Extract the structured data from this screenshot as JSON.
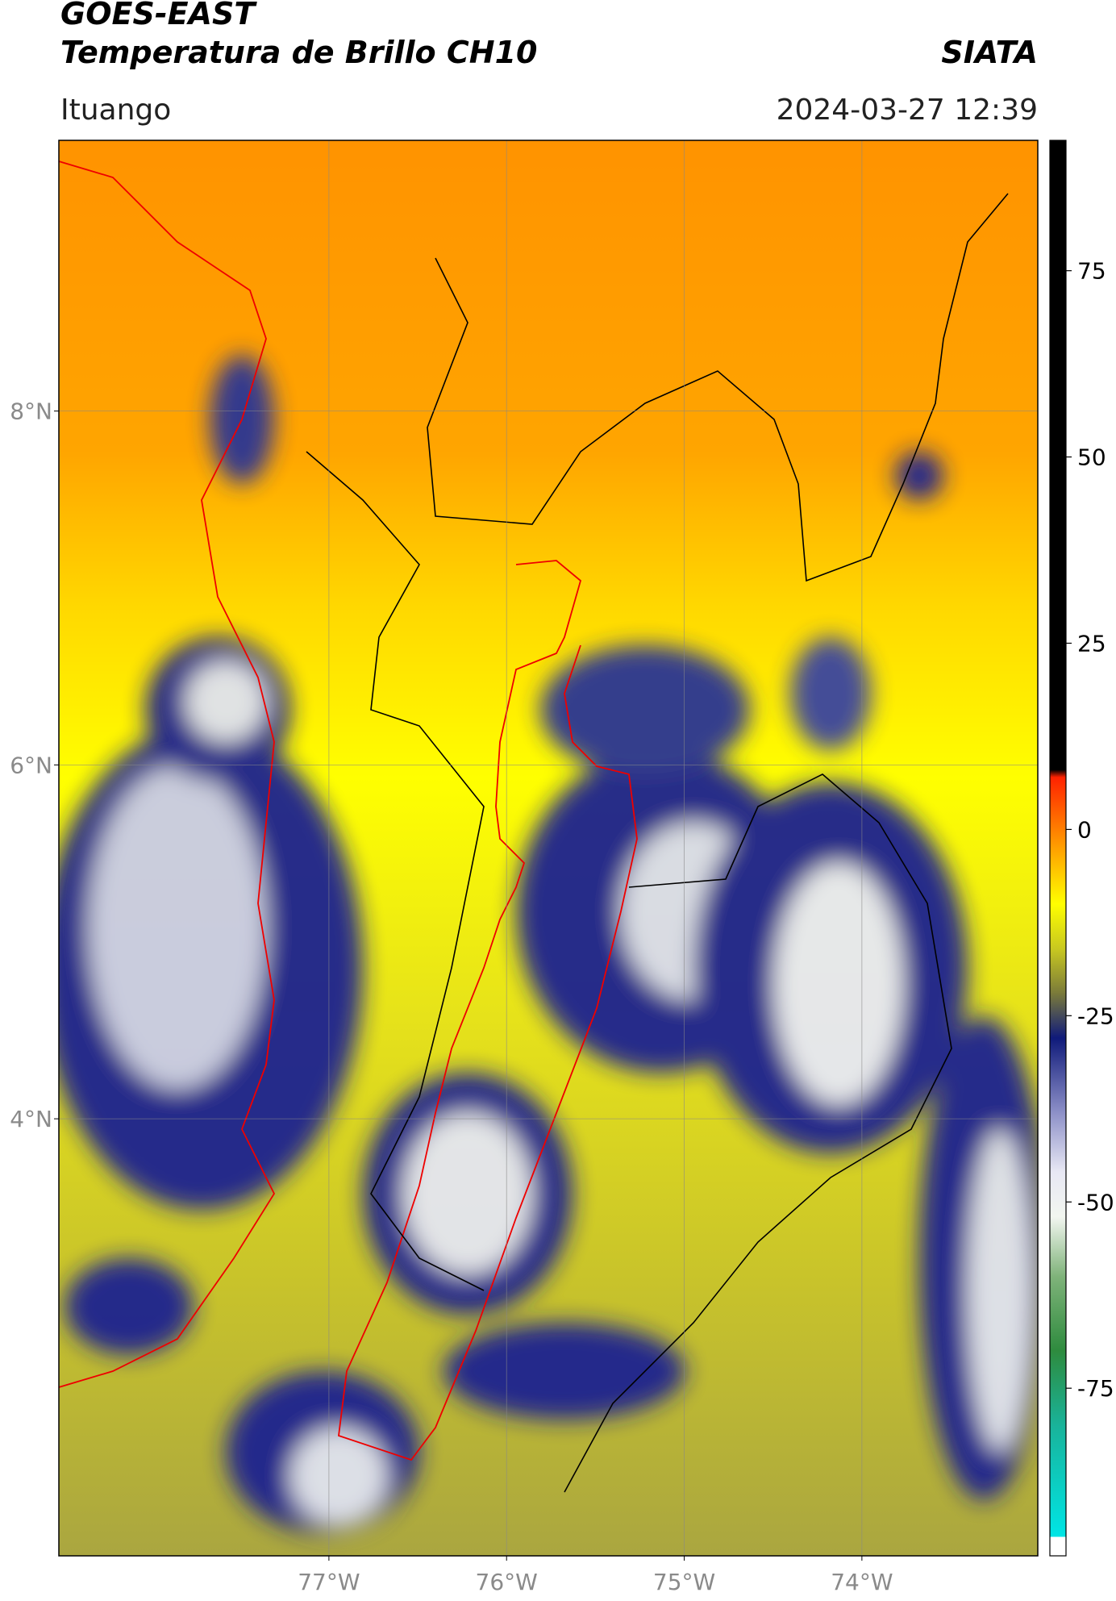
{
  "header": {
    "title": "GOES-EAST",
    "subtitle": "Temperatura de Brillo CH10",
    "source": "SIATA",
    "location": "Ituango",
    "datetime": "2024-03-27 12:39"
  },
  "map": {
    "lonlim": [
      -78.52,
      -73.01
    ],
    "latlim": [
      1.53,
      9.53
    ],
    "lat_ticks": [
      {
        "value": 8,
        "label": "8°N"
      },
      {
        "value": 6,
        "label": "6°N"
      },
      {
        "value": 4,
        "label": "4°N"
      }
    ],
    "lon_ticks": [
      {
        "value": -77,
        "label": "77°W"
      },
      {
        "value": -76,
        "label": "76°W"
      },
      {
        "value": -75,
        "label": "75°W"
      },
      {
        "value": -74,
        "label": "74°W"
      }
    ],
    "grid": true
  },
  "colorbar": {
    "lim": [
      -97.5,
      92.5
    ],
    "ticks": [
      75,
      50,
      25,
      0,
      -25,
      -50,
      -75
    ],
    "colormap": [
      {
        "value": -97.5,
        "color": "#ffffff"
      },
      {
        "value": -95,
        "color": "#ffffff"
      },
      {
        "value": -94.9,
        "color": "#00e5e5"
      },
      {
        "value": -80,
        "color": "#19b39a"
      },
      {
        "value": -70,
        "color": "#2e8b3e"
      },
      {
        "value": -60,
        "color": "#7fb37a"
      },
      {
        "value": -52,
        "color": "#f2f6f0"
      },
      {
        "value": -46,
        "color": "#e8e8f4"
      },
      {
        "value": -38,
        "color": "#8d90c8"
      },
      {
        "value": -28,
        "color": "#0f1a7a"
      },
      {
        "value": -22,
        "color": "#7a7a3a"
      },
      {
        "value": -16,
        "color": "#c8c820"
      },
      {
        "value": -10,
        "color": "#ffff00"
      },
      {
        "value": -2,
        "color": "#ff9900"
      },
      {
        "value": 7,
        "color": "#ff2200"
      },
      {
        "value": 8,
        "color": "#000000"
      },
      {
        "value": 92.5,
        "color": "#000000"
      }
    ]
  }
}
